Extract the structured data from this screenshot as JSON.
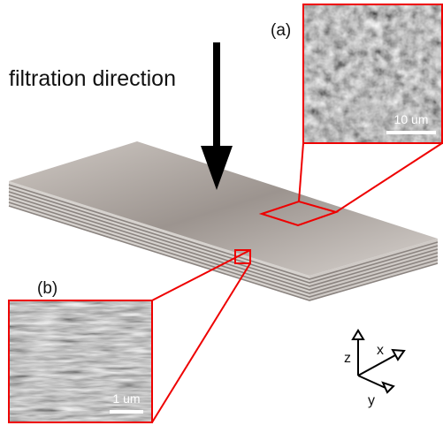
{
  "title": "filtration direction",
  "insets": [
    {
      "label": "(a)",
      "scale_bar": "10 um"
    },
    {
      "label": "(b)",
      "scale_bar": "1 um"
    }
  ],
  "axes": {
    "z": "z",
    "x": "x",
    "y": "y"
  }
}
